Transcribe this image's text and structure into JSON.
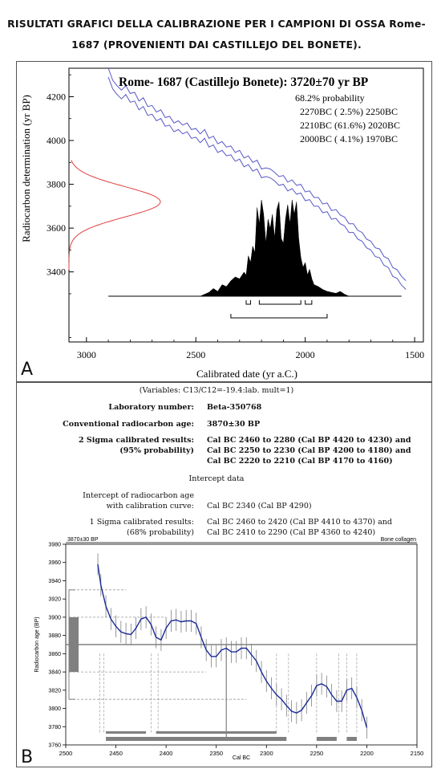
{
  "header": {
    "line1": "RISULTATI GRAFICI DELLA CALIBRAZIONE PER I CAMPIONI DI OSSA Rome-",
    "line2": "1687 (PROVENIENTI DAI CASTILLEJO DEL BONETE)."
  },
  "panel_labels": {
    "a": "A",
    "b": "B"
  },
  "report": {
    "variables": "(Variables: C13/C12=-19.4:lab. mult=1)",
    "lab_number_label": "Laboratory number:",
    "lab_number_value": "Beta-350768",
    "conv_age_label": "Conventional radiocarbon age:",
    "conv_age_value": "3870±30 BP",
    "two_sigma_label1": "2 Sigma calibrated results:",
    "two_sigma_label2": "(95% probability)",
    "two_sigma_line1": "Cal BC 2460 to 2280 (Cal BP 4420 to 4230) and",
    "two_sigma_line2": "Cal BC 2250 to 2230 (Cal BP 4200 to 4180) and",
    "two_sigma_line3": "Cal BC 2220 to 2210 (Cal BP 4170 to 4160)",
    "intercept_title": "Intercept data",
    "intercept_label1": "Intercept of radiocarbon age",
    "intercept_label2": "with calibration curve:",
    "intercept_value": "Cal BC 2340 (Cal BP 4290)",
    "one_sigma_label1": "1 Sigma calibrated results:",
    "one_sigma_label2": "(68% probability)",
    "one_sigma_line1": "Cal BC 2460 to 2420 (Cal BP 4410 to 4370) and",
    "one_sigma_line2": "Cal BC 2410 to 2290 (Cal BP 4360 to 4240)"
  },
  "chart_data": [
    {
      "type": "line",
      "title": "Rome- 1687 (Castillejo Bonete): 3720±70 yr BP",
      "annotations": [
        "68.2% probability",
        "2270BC ( 2.5%) 2250BC",
        "2210BC (61.6%) 2020BC",
        "2000BC ( 4.1%) 1970BC"
      ],
      "xlabel": "Calibrated date (yr a.C.)",
      "ylabel": "Radiocarbon determination (yr BP)",
      "xlim": [
        3080,
        1460
      ],
      "ylim": [
        3080,
        4330
      ],
      "x_ticks": [
        3000,
        2500,
        2000,
        1500
      ],
      "y_ticks": [
        3400,
        3600,
        3800,
        4000,
        4200
      ],
      "colors": {
        "curve": "#5757c8",
        "measurement": "#e04040",
        "distribution": "#000000"
      },
      "series": [
        {
          "x": [
            2900,
            2880,
            2860,
            2840,
            2820,
            2800,
            2780,
            2760,
            2740,
            2720,
            2700,
            2680,
            2660,
            2640,
            2620,
            2600,
            2580,
            2560,
            2540,
            2520,
            2500,
            2480,
            2460,
            2440,
            2420,
            2400,
            2380,
            2360,
            2340,
            2320,
            2300,
            2280,
            2260,
            2240,
            2220,
            2200,
            2180,
            2160,
            2140,
            2120,
            2100,
            2080,
            2060,
            2040,
            2020,
            2000,
            1980,
            1960,
            1940,
            1920,
            1900,
            1880,
            1860,
            1840,
            1820,
            1800,
            1780,
            1760,
            1740,
            1720,
            1700,
            1680,
            1660,
            1640,
            1620,
            1600,
            1580,
            1560,
            1540
          ],
          "y": [
            4310,
            4255,
            4230,
            4210,
            4230,
            4195,
            4200,
            4160,
            4175,
            4135,
            4140,
            4110,
            4120,
            4085,
            4090,
            4060,
            4070,
            4050,
            4060,
            4030,
            4035,
            4010,
            4030,
            3990,
            4000,
            3965,
            3975,
            3950,
            3955,
            3925,
            3935,
            3900,
            3910,
            3880,
            3890,
            3850,
            3855,
            3850,
            3835,
            3815,
            3820,
            3790,
            3800,
            3775,
            3780,
            3745,
            3750,
            3720,
            3720,
            3690,
            3695,
            3660,
            3665,
            3640,
            3630,
            3600,
            3600,
            3570,
            3560,
            3530,
            3520,
            3490,
            3485,
            3450,
            3440,
            3400,
            3390,
            3360,
            3340
          ]
        }
      ],
      "measurement": {
        "mean_bp": 3720,
        "sigma_bp": 70
      },
      "distribution": {
        "x": [
          2480,
          2460,
          2440,
          2420,
          2400,
          2380,
          2360,
          2340,
          2320,
          2300,
          2280,
          2270,
          2260,
          2250,
          2240,
          2230,
          2220,
          2210,
          2200,
          2190,
          2180,
          2170,
          2160,
          2150,
          2140,
          2130,
          2120,
          2110,
          2100,
          2090,
          2080,
          2070,
          2060,
          2050,
          2040,
          2030,
          2020,
          2010,
          2000,
          1990,
          1980,
          1970,
          1960,
          1940,
          1920,
          1900,
          1880,
          1860,
          1840,
          1820,
          1800
        ],
        "density": [
          0.0,
          0.02,
          0.04,
          0.08,
          0.05,
          0.12,
          0.1,
          0.16,
          0.2,
          0.18,
          0.25,
          0.22,
          0.42,
          0.35,
          0.52,
          0.45,
          0.92,
          0.75,
          1.0,
          0.85,
          0.55,
          0.8,
          0.7,
          0.85,
          0.6,
          0.9,
          0.98,
          0.6,
          0.55,
          0.8,
          0.95,
          0.75,
          1.0,
          0.85,
          0.98,
          0.6,
          0.4,
          0.3,
          0.35,
          0.22,
          0.28,
          0.18,
          0.12,
          0.1,
          0.07,
          0.05,
          0.04,
          0.03,
          0.05,
          0.02,
          0.0
        ]
      },
      "ranges_68": [
        [
          2270,
          2250
        ],
        [
          2210,
          2020
        ],
        [
          2000,
          1970
        ]
      ],
      "ranges_95": [
        [
          2340,
          1900
        ]
      ]
    },
    {
      "type": "line",
      "title_left": "3870±30 BP",
      "title_right": "Bone collagen",
      "xlabel": "Cal BC",
      "ylabel": "Radiocarbon age (BP)",
      "xlim": [
        2500,
        2150
      ],
      "ylim": [
        3760,
        3980
      ],
      "x_ticks": [
        2500,
        2450,
        2400,
        2350,
        2300,
        2250,
        2200,
        2150
      ],
      "y_ticks": [
        3760,
        3780,
        3800,
        3820,
        3840,
        3860,
        3880,
        3900,
        3920,
        3940,
        3960,
        3980
      ],
      "colors": {
        "curve": "#1a2a9a",
        "error_bars": "#808080",
        "bars": "#808080"
      },
      "series": [
        {
          "x": [
            2468,
            2465,
            2460,
            2455,
            2450,
            2445,
            2440,
            2435,
            2430,
            2425,
            2420,
            2415,
            2410,
            2405,
            2400,
            2395,
            2390,
            2385,
            2380,
            2375,
            2370,
            2365,
            2360,
            2355,
            2350,
            2345,
            2340,
            2335,
            2330,
            2325,
            2320,
            2315,
            2310,
            2305,
            2300,
            2295,
            2290,
            2285,
            2280,
            2275,
            2270,
            2265,
            2260,
            2255,
            2250,
            2245,
            2240,
            2235,
            2230,
            2225,
            2220,
            2215,
            2210,
            2205,
            2200
          ],
          "y": [
            3958,
            3935,
            3912,
            3898,
            3890,
            3884,
            3882,
            3881,
            3888,
            3898,
            3900,
            3892,
            3878,
            3875,
            3888,
            3896,
            3897,
            3895,
            3896,
            3896,
            3893,
            3878,
            3864,
            3857,
            3857,
            3864,
            3866,
            3862,
            3862,
            3866,
            3866,
            3859,
            3852,
            3840,
            3830,
            3822,
            3815,
            3810,
            3803,
            3797,
            3795,
            3798,
            3806,
            3814,
            3825,
            3827,
            3824,
            3815,
            3808,
            3808,
            3820,
            3822,
            3812,
            3798,
            3779
          ]
        }
      ],
      "measurement": {
        "mean_bp": 3870,
        "one_sigma": [
          3840,
          3900
        ],
        "two_sigma": [
          3810,
          3930
        ]
      },
      "intercept": 2340,
      "range_bars_2sigma": [
        [
          2460,
          2280
        ],
        [
          2250,
          2230
        ],
        [
          2220,
          2210
        ]
      ],
      "range_bars_1sigma": [
        [
          2460,
          2420
        ],
        [
          2410,
          2290
        ]
      ]
    }
  ]
}
